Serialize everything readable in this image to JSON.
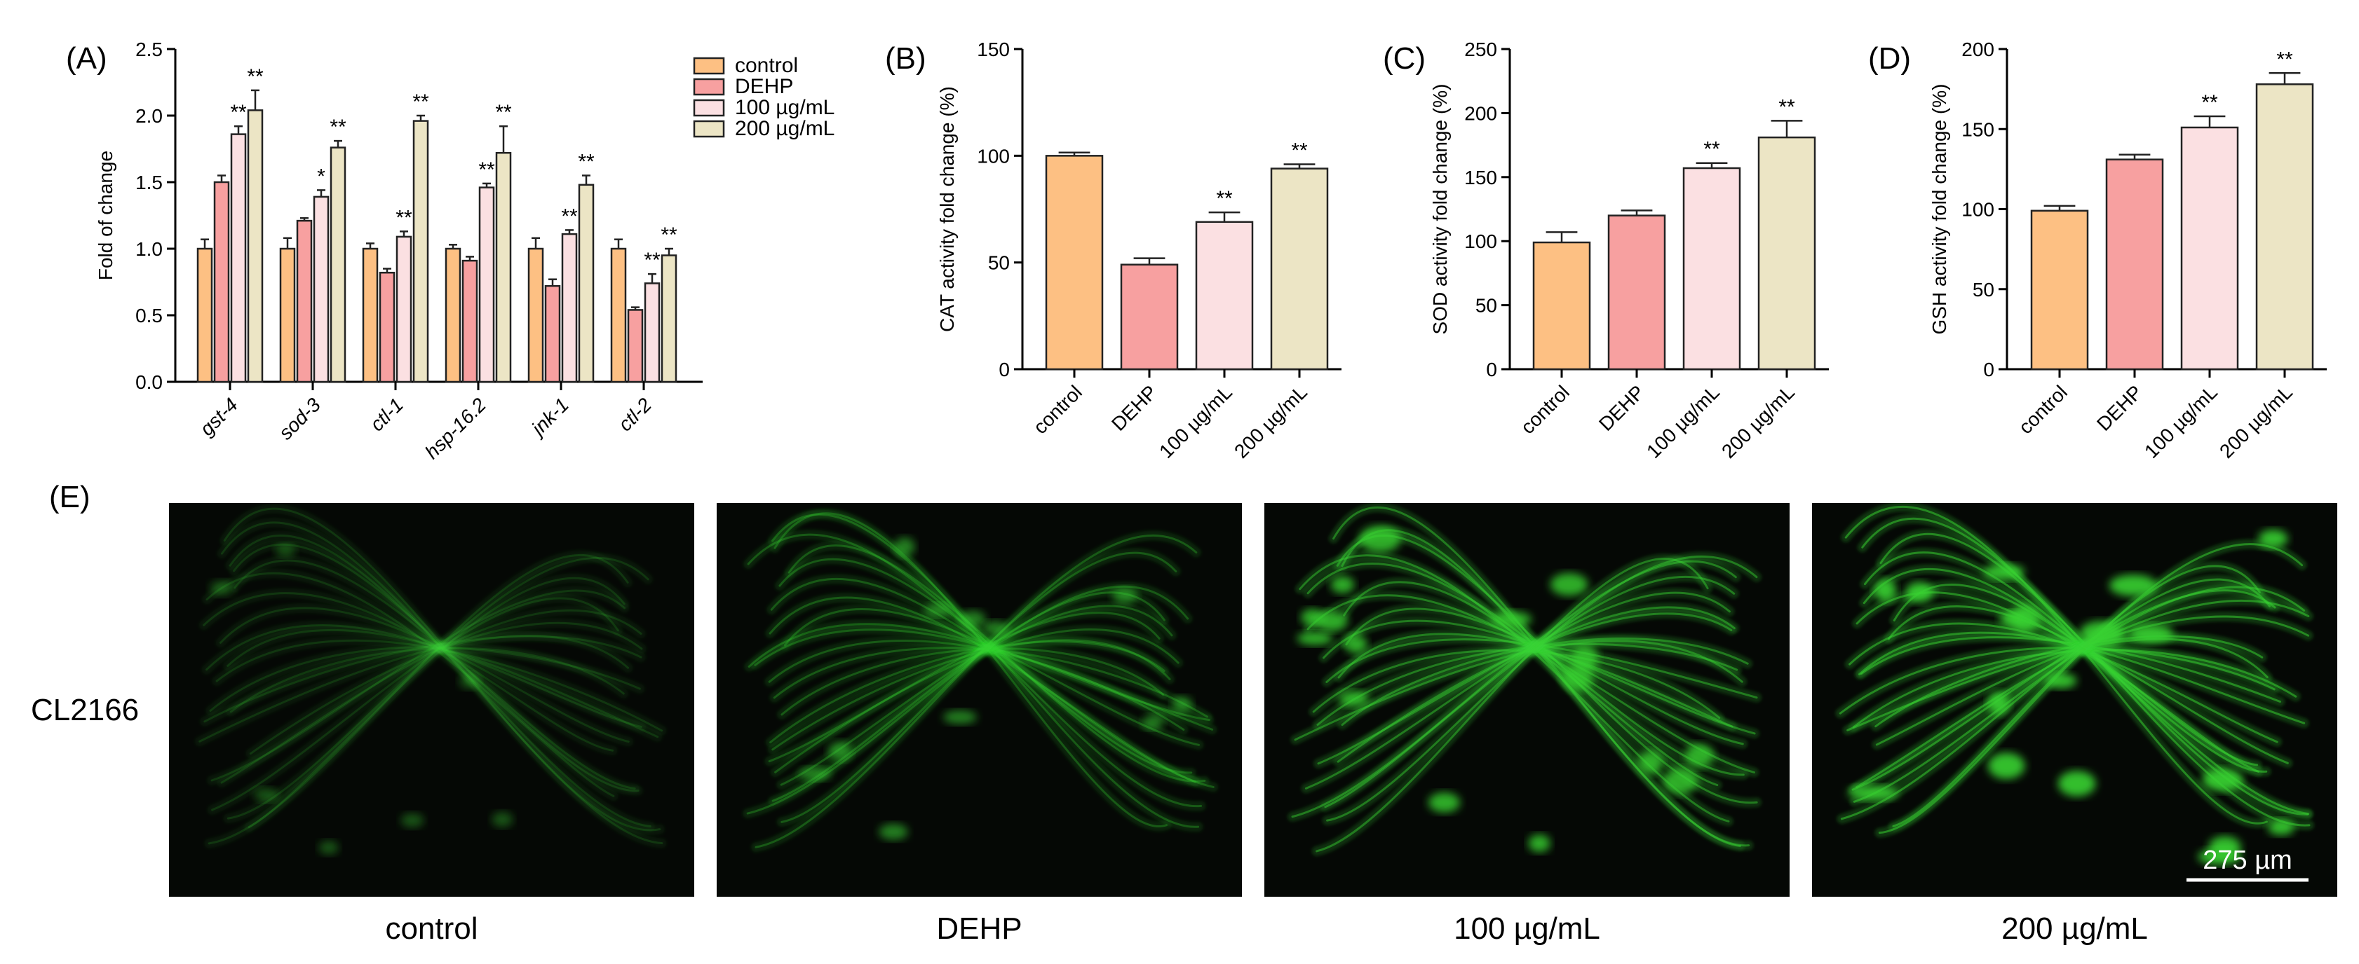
{
  "colors": {
    "control": "#fdc083",
    "DEHP": "#f7a0a0",
    "100 µg/mL": "#fbe0e2",
    "200 µg/mL": "#ece5c5",
    "fluorescence": "#38d232",
    "image_bg": "#050805"
  },
  "legend": [
    "control",
    "DEHP",
    "100 µg/mL",
    "200 µg/mL"
  ],
  "chart_data": [
    {
      "panel": "(A)",
      "type": "bar",
      "ylabel": "Fold of change",
      "ylim": [
        0,
        2.5
      ],
      "yticks": [
        "0.0",
        "0.5",
        "1.0",
        "1.5",
        "2.0",
        "2.5"
      ],
      "categories": [
        "gst-4",
        "sod-3",
        "ctl-1",
        "hsp-16.2",
        "jnk-1",
        "ctl-2"
      ],
      "series": [
        {
          "name": "control",
          "values": [
            1.0,
            1.0,
            1.0,
            1.0,
            1.0,
            1.0
          ],
          "errors": [
            0.07,
            0.08,
            0.04,
            0.03,
            0.08,
            0.07
          ],
          "sig": [
            "",
            "",
            "",
            "",
            "",
            ""
          ]
        },
        {
          "name": "DEHP",
          "values": [
            1.5,
            1.21,
            0.82,
            0.91,
            0.72,
            0.54
          ],
          "errors": [
            0.05,
            0.02,
            0.03,
            0.03,
            0.05,
            0.02
          ],
          "sig": [
            "",
            "",
            "",
            "",
            "",
            ""
          ]
        },
        {
          "name": "100 µg/mL",
          "values": [
            1.86,
            1.39,
            1.09,
            1.46,
            1.11,
            0.74
          ],
          "errors": [
            0.06,
            0.05,
            0.04,
            0.03,
            0.03,
            0.07
          ],
          "sig": [
            "**",
            "*",
            "**",
            "**",
            "**",
            "**"
          ]
        },
        {
          "name": "200 µg/mL",
          "values": [
            2.04,
            1.76,
            1.96,
            1.72,
            1.48,
            0.95
          ],
          "errors": [
            0.15,
            0.05,
            0.04,
            0.2,
            0.07,
            0.05
          ],
          "sig": [
            "**",
            "**",
            "**",
            "**",
            "**",
            "**"
          ]
        }
      ]
    },
    {
      "panel": "(B)",
      "type": "bar",
      "ylabel": "CAT activity fold change (%)",
      "ylim": [
        0,
        150
      ],
      "yticks": [
        "0",
        "50",
        "100",
        "150"
      ],
      "categories": [
        "control",
        "DEHP",
        "100 µg/mL",
        "200 µg/mL"
      ],
      "values": [
        100,
        49,
        69,
        94
      ],
      "errors": [
        1.5,
        3,
        4.5,
        2
      ],
      "sig": [
        "",
        "",
        "**",
        "**"
      ]
    },
    {
      "panel": "(C)",
      "type": "bar",
      "ylabel": "SOD activity fold change (%)",
      "ylim": [
        0,
        250
      ],
      "yticks": [
        "0",
        "50",
        "100",
        "150",
        "200",
        "250"
      ],
      "categories": [
        "control",
        "DEHP",
        "100 µg/mL",
        "200 µg/mL"
      ],
      "values": [
        99,
        120,
        157,
        181
      ],
      "errors": [
        8,
        4,
        4,
        13
      ],
      "sig": [
        "",
        "",
        "**",
        "**"
      ]
    },
    {
      "panel": "(D)",
      "type": "bar",
      "ylabel": "GSH activity fold change (%)",
      "ylim": [
        0,
        200
      ],
      "yticks": [
        "0",
        "50",
        "100",
        "150",
        "200"
      ],
      "categories": [
        "control",
        "DEHP",
        "100 µg/mL",
        "200 µg/mL"
      ],
      "values": [
        99,
        131,
        151,
        178
      ],
      "errors": [
        3,
        3,
        7,
        7
      ],
      "sig": [
        "",
        "",
        "**",
        "**"
      ]
    }
  ],
  "panelE": {
    "letter": "(E)",
    "row_label": "CL2166",
    "images": [
      "control",
      "DEHP",
      "100 µg/mL",
      "200 µg/mL"
    ],
    "scale_bar": "275 µm"
  }
}
